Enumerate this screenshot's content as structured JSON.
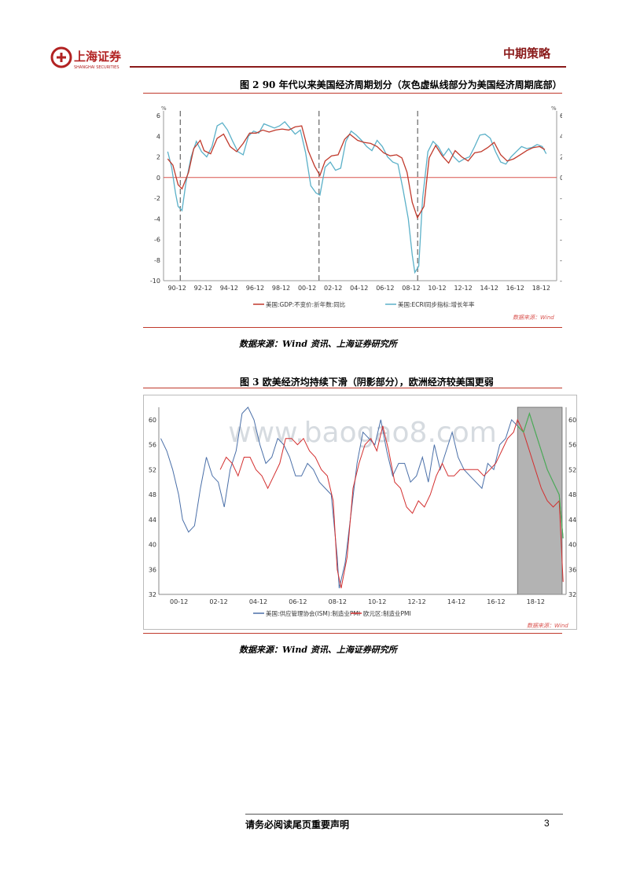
{
  "header": {
    "company_name": "上海证券",
    "company_name_en": "SHANGHAI SECURITIES",
    "report_type": "中期策略",
    "brand_color": "#8a1a1a"
  },
  "figure2": {
    "title": "图 2 90 年代以来美国经济周期划分（灰色虚纵线部分为美国经济周期底部）",
    "source": "数据来源：Wind 资讯、上海证券研究所",
    "chart_data": {
      "type": "line",
      "y_unit": "%",
      "ylim": [
        -10,
        6
      ],
      "yticks": [
        "6",
        "4",
        "2",
        "0",
        "-2",
        "-4",
        "-6",
        "-8",
        "-10"
      ],
      "x_tick_labels": [
        "90-12",
        "92-12",
        "94-12",
        "96-12",
        "98-12",
        "00-12",
        "02-12",
        "04-12",
        "06-12",
        "08-12",
        "10-12",
        "12-12",
        "14-12",
        "16-12",
        "18-12"
      ],
      "recession_markers": [
        "91-03",
        "01-11",
        "09-06"
      ],
      "watermark": "数据来源：Wind",
      "series": [
        {
          "name": "美国:GDP:不变价:折年数:同比",
          "color": "#c0392b",
          "x": [
            1990.2,
            1990.6,
            1991.0,
            1991.3,
            1991.8,
            1992.2,
            1992.7,
            1993.0,
            1993.5,
            1994.0,
            1994.5,
            1995.0,
            1995.5,
            1996.0,
            1996.5,
            1997.0,
            1997.5,
            1998.0,
            1998.5,
            1999.0,
            1999.5,
            2000.0,
            2000.5,
            2001.0,
            2001.5,
            2001.9,
            2002.3,
            2002.8,
            2003.3,
            2003.8,
            2004.2,
            2004.8,
            2005.3,
            2005.8,
            2006.3,
            2006.8,
            2007.3,
            2007.8,
            2008.2,
            2008.6,
            2009.0,
            2009.4,
            2009.9,
            2010.3,
            2010.8,
            2011.3,
            2011.8,
            2012.3,
            2012.8,
            2013.3,
            2013.8,
            2014.3,
            2014.8,
            2015.3,
            2015.8,
            2016.3,
            2016.8,
            2017.3,
            2017.8,
            2018.3,
            2018.8,
            2019.2
          ],
          "y": [
            1.8,
            1.2,
            -0.7,
            -1.1,
            0.5,
            2.8,
            3.6,
            2.6,
            2.3,
            3.8,
            4.2,
            3.0,
            2.5,
            3.3,
            4.3,
            4.3,
            4.6,
            4.4,
            4.6,
            4.7,
            4.6,
            4.9,
            5.0,
            2.6,
            1.1,
            0.2,
            1.6,
            2.1,
            2.2,
            3.7,
            4.2,
            3.6,
            3.4,
            3.3,
            3.0,
            2.4,
            2.1,
            2.2,
            1.9,
            0.5,
            -2.4,
            -3.9,
            -2.8,
            1.9,
            3.1,
            2.1,
            1.4,
            2.6,
            2.0,
            1.6,
            2.4,
            2.5,
            2.9,
            3.4,
            2.2,
            1.6,
            1.8,
            2.2,
            2.6,
            2.9,
            3.0,
            2.7
          ]
        },
        {
          "name": "美国:ECRI同步指标:增长年率",
          "color": "#5ab0c8",
          "x": [
            1990.2,
            1990.5,
            1990.8,
            1991.0,
            1991.3,
            1991.6,
            1992.0,
            1992.4,
            1992.8,
            1993.2,
            1993.6,
            1994.0,
            1994.4,
            1994.8,
            1995.2,
            1995.6,
            1996.0,
            1996.4,
            1996.8,
            1997.2,
            1997.6,
            1998.0,
            1998.4,
            1998.8,
            1999.2,
            1999.6,
            2000.0,
            2000.4,
            2000.8,
            2001.2,
            2001.6,
            2001.9,
            2002.3,
            2002.7,
            2003.1,
            2003.5,
            2003.9,
            2004.3,
            2004.7,
            2005.1,
            2005.5,
            2005.9,
            2006.3,
            2006.7,
            2007.1,
            2007.5,
            2007.9,
            2008.3,
            2008.7,
            2009.0,
            2009.2,
            2009.5,
            2009.8,
            2010.2,
            2010.6,
            2011.0,
            2011.4,
            2011.8,
            2012.2,
            2012.6,
            2013.0,
            2013.4,
            2013.8,
            2014.2,
            2014.6,
            2015.0,
            2015.4,
            2015.8,
            2016.2,
            2016.6,
            2017.0,
            2017.4,
            2017.8,
            2018.2,
            2018.6,
            2019.0,
            2019.3
          ],
          "y": [
            2.5,
            1.0,
            -1.5,
            -2.8,
            -3.2,
            -0.5,
            2.0,
            3.5,
            2.5,
            2.0,
            3.0,
            5.0,
            5.3,
            4.6,
            3.5,
            2.5,
            2.2,
            4.0,
            4.5,
            4.3,
            5.2,
            5.0,
            4.8,
            5.0,
            5.4,
            4.8,
            4.2,
            4.6,
            2.4,
            -0.8,
            -1.5,
            -1.7,
            1.0,
            1.5,
            0.7,
            0.9,
            3.5,
            4.5,
            4.1,
            3.6,
            3.0,
            2.6,
            3.6,
            3.0,
            2.0,
            1.5,
            1.3,
            -1.2,
            -4.0,
            -7.5,
            -9.2,
            -8.6,
            -2.0,
            2.5,
            3.5,
            3.0,
            2.1,
            2.8,
            2.0,
            1.5,
            1.8,
            2.0,
            3.0,
            4.1,
            4.2,
            3.8,
            2.5,
            1.5,
            1.3,
            2.0,
            2.5,
            3.0,
            2.8,
            2.9,
            3.2,
            3.0,
            2.3
          ]
        }
      ]
    }
  },
  "figure3": {
    "title": "图 3 欧美经济均持续下滑（阴影部分），欧洲经济较美国更弱",
    "source": "数据来源：Wind 资讯、上海证券研究所",
    "chart_data": {
      "type": "line",
      "ylim": [
        32,
        62
      ],
      "yticks": [
        "60",
        "56",
        "52",
        "48",
        "44",
        "40",
        "36",
        "32"
      ],
      "x_tick_labels": [
        "00-12",
        "02-12",
        "04-12",
        "06-12",
        "08-12",
        "10-12",
        "12-12",
        "14-12",
        "16-12",
        "18-12"
      ],
      "shaded_range": [
        "18-01",
        "20-04"
      ],
      "watermark": "数据来源：Wind",
      "overlay_watermark": "www.baogao8.com",
      "series": [
        {
          "name": "美国:供应管理协会(ISM):制造业PMI",
          "color": "#4a6fa8",
          "x": [
            2000.0,
            2000.3,
            2000.6,
            2000.9,
            2001.1,
            2001.4,
            2001.7,
            2002.0,
            2002.3,
            2002.6,
            2002.9,
            2003.2,
            2003.5,
            2003.8,
            2004.1,
            2004.4,
            2004.7,
            2005.0,
            2005.3,
            2005.6,
            2005.9,
            2006.2,
            2006.5,
            2006.8,
            2007.1,
            2007.4,
            2007.7,
            2008.0,
            2008.3,
            2008.6,
            2008.9,
            2009.0,
            2009.3,
            2009.6,
            2009.9,
            2010.2,
            2010.5,
            2010.8,
            2011.1,
            2011.4,
            2011.7,
            2012.0,
            2012.3,
            2012.6,
            2012.9,
            2013.2,
            2013.5,
            2013.8,
            2014.1,
            2014.4,
            2014.7,
            2015.0,
            2015.3,
            2015.6,
            2015.9,
            2016.2,
            2016.5,
            2016.8,
            2017.1,
            2017.4,
            2017.7,
            2018.0,
            2018.3,
            2018.6,
            2018.9,
            2019.2,
            2019.5,
            2019.8,
            2020.1,
            2020.3
          ],
          "y": [
            57,
            55,
            52,
            48,
            44,
            42,
            43,
            49,
            54,
            51,
            50,
            46,
            52,
            55,
            61,
            62,
            60,
            56,
            53,
            54,
            57,
            56,
            54,
            51,
            51,
            53,
            52,
            50,
            49,
            48,
            38,
            33,
            37,
            45,
            53,
            58,
            57,
            56,
            60,
            55,
            51,
            53,
            53,
            50,
            51,
            54,
            50,
            56,
            52,
            55,
            58,
            54,
            52,
            51,
            50,
            49,
            53,
            52,
            56,
            57,
            60,
            59,
            58,
            61,
            58,
            55,
            52,
            50,
            48,
            41
          ]
        },
        {
          "name": "欧元区:制造业PMI",
          "color": "#d32f2f",
          "x": [
            2003.0,
            2003.3,
            2003.6,
            2003.9,
            2004.2,
            2004.5,
            2004.8,
            2005.1,
            2005.4,
            2005.7,
            2006.0,
            2006.3,
            2006.6,
            2006.9,
            2007.2,
            2007.5,
            2007.8,
            2008.1,
            2008.4,
            2008.7,
            2008.9,
            2009.1,
            2009.4,
            2009.7,
            2010.0,
            2010.3,
            2010.6,
            2010.9,
            2011.2,
            2011.5,
            2011.8,
            2012.1,
            2012.4,
            2012.7,
            2013.0,
            2013.3,
            2013.6,
            2013.9,
            2014.2,
            2014.5,
            2014.8,
            2015.1,
            2015.4,
            2015.7,
            2016.0,
            2016.3,
            2016.6,
            2016.9,
            2017.2,
            2017.5,
            2017.8,
            2018.0,
            2018.3,
            2018.6,
            2018.9,
            2019.2,
            2019.5,
            2019.8,
            2020.1,
            2020.3
          ],
          "y": [
            52,
            54,
            53,
            51,
            54,
            54,
            52,
            51,
            49,
            51,
            53,
            57,
            57,
            56,
            57,
            55,
            54,
            52,
            51,
            47,
            36,
            33,
            38,
            49,
            53,
            56,
            57,
            55,
            59,
            55,
            50,
            49,
            46,
            45,
            47,
            46,
            48,
            51,
            53,
            51,
            51,
            52,
            52,
            52,
            52,
            51,
            52,
            53,
            55,
            57,
            58,
            60,
            58,
            55,
            52,
            49,
            47,
            46,
            47,
            34
          ]
        }
      ]
    }
  },
  "footer": {
    "disclaimer": "请务必阅读尾页重要声明",
    "page_number": "3"
  }
}
